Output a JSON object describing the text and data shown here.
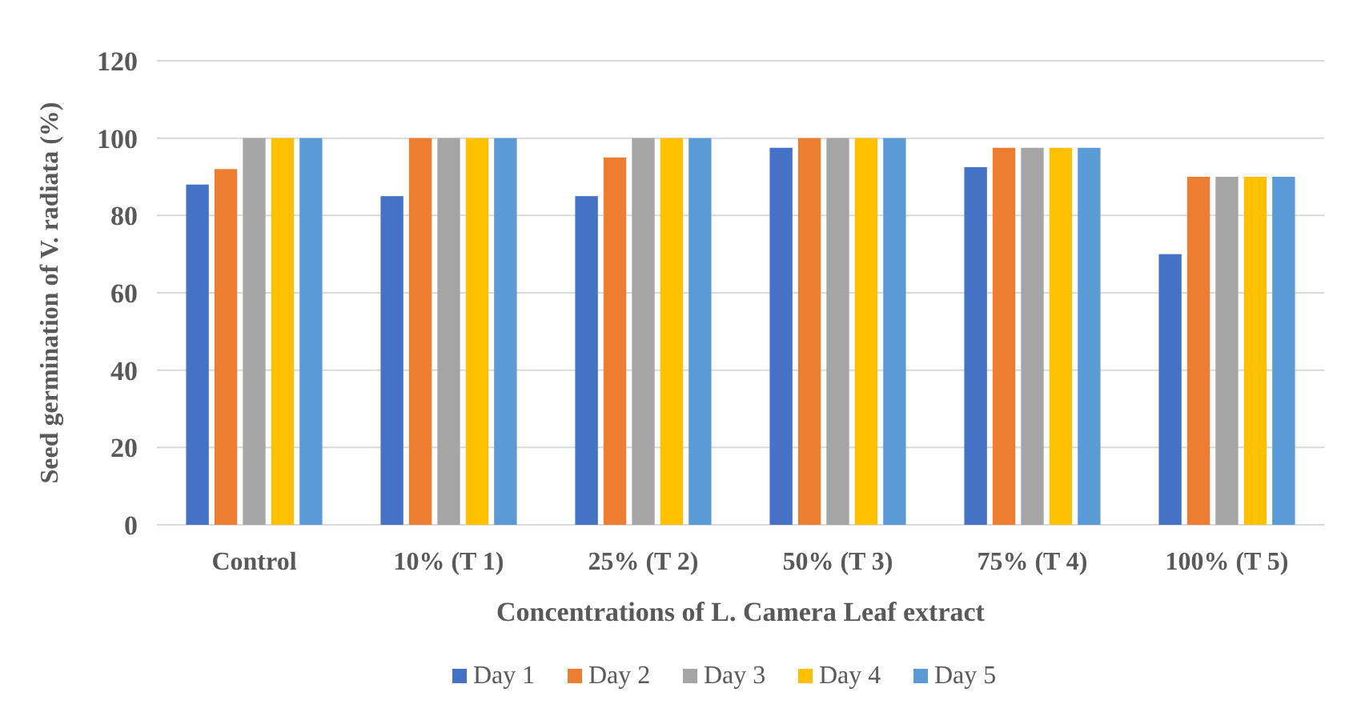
{
  "chart_data": {
    "type": "bar",
    "xlabel": "Concentrations of L. Camera Leaf extract",
    "ylabel": "Seed germination of V. radiata (%)",
    "categories": [
      "Control",
      "10% (T 1)",
      "25% (T 2)",
      "50% (T 3)",
      "75% (T 4)",
      "100% (T 5)"
    ],
    "series": [
      {
        "name": "Day 1",
        "color": "#4472c4",
        "values": [
          88,
          85,
          85,
          97.5,
          92.5,
          70
        ]
      },
      {
        "name": "Day 2",
        "color": "#ed7d31",
        "values": [
          92,
          100,
          95,
          100,
          97.5,
          90
        ]
      },
      {
        "name": "Day 3",
        "color": "#a5a5a5",
        "values": [
          100,
          100,
          100,
          100,
          97.5,
          90
        ]
      },
      {
        "name": "Day 4",
        "color": "#ffc000",
        "values": [
          100,
          100,
          100,
          100,
          97.5,
          90
        ]
      },
      {
        "name": "Day 5",
        "color": "#5b9bd5",
        "values": [
          100,
          100,
          100,
          100,
          97.5,
          90
        ]
      }
    ],
    "ylim": [
      0,
      120
    ],
    "yticks": [
      0,
      20,
      40,
      60,
      80,
      100,
      120
    ],
    "grid": "y",
    "legend": "bottom"
  }
}
